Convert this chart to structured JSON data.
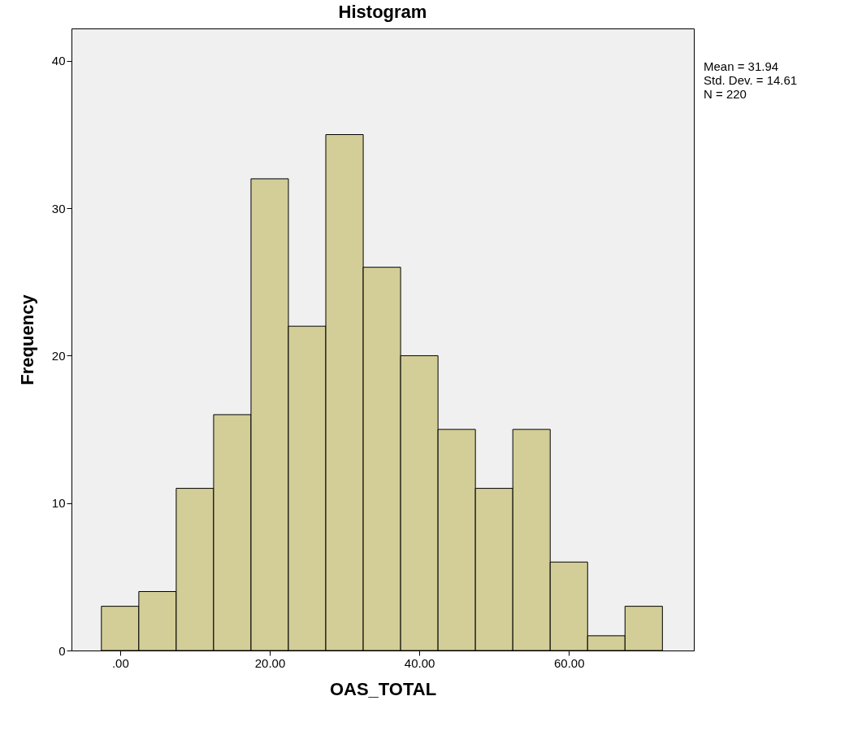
{
  "chart_data": {
    "type": "histogram",
    "title": "Histogram",
    "xlabel": "OAS_TOTAL",
    "ylabel": "Frequency",
    "bins": [
      -2.5,
      2.5,
      7.5,
      12.5,
      17.5,
      22.5,
      27.5,
      32.5,
      37.5,
      42.5,
      47.5,
      52.5,
      57.5,
      62.5,
      67.5,
      72.5
    ],
    "values": [
      3,
      4,
      11,
      16,
      32,
      22,
      35,
      26,
      20,
      15,
      11,
      15,
      6,
      1,
      3
    ],
    "color": "#d3ce97",
    "xlim": [
      -6.5,
      76.7
    ],
    "xticks": [
      {
        "value": 0,
        "label": ".00"
      },
      {
        "value": 20,
        "label": "20.00"
      },
      {
        "value": 40,
        "label": "40.00"
      },
      {
        "value": 60,
        "label": "60.00"
      }
    ],
    "ylim": [
      0,
      42.2
    ],
    "yticks": [
      0,
      10,
      20,
      30,
      40
    ],
    "grid": false,
    "annotations": [
      "Mean = 31.94",
      "Std. Dev. = 14.61",
      "N = 220"
    ]
  }
}
